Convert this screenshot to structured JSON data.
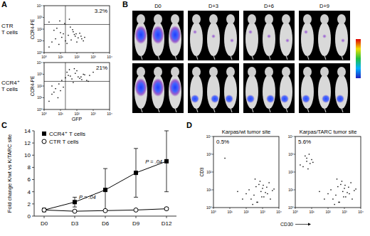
{
  "chart_data": [
    {
      "type": "scatter",
      "panel": "A",
      "title": "CTR T cells",
      "y_label": "CCR4-PE",
      "color": "#000000",
      "log": true,
      "xlim": [
        1,
        10000
      ],
      "ylim": [
        1,
        10000
      ],
      "xticks": [
        {
          "value": 1,
          "label": "10⁰"
        },
        {
          "value": 10,
          "label": "10¹"
        },
        {
          "value": 100,
          "label": "10²"
        },
        {
          "value": 1000,
          "label": "10³"
        },
        {
          "value": 10000,
          "label": "10⁴"
        }
      ],
      "yticks": [
        {
          "value": 1,
          "label": "10⁰"
        },
        {
          "value": 10,
          "label": "10¹"
        },
        {
          "value": 100,
          "label": "10²"
        },
        {
          "value": 1000,
          "label": "10³"
        },
        {
          "value": 10000,
          "label": "10⁴"
        }
      ],
      "quadrant": [
        20,
        250
      ],
      "annotation": "3.2%",
      "x": [
        2,
        3,
        5,
        8,
        12,
        15,
        20,
        30,
        45,
        60,
        80,
        100,
        150,
        200,
        300,
        4,
        6,
        10,
        25,
        40,
        70,
        120,
        250,
        2,
        9,
        18,
        35,
        55,
        90,
        180
      ],
      "y": [
        3,
        8,
        15,
        5,
        20,
        40,
        10,
        30,
        12,
        60,
        25,
        8,
        45,
        15,
        20,
        80,
        120,
        50,
        6,
        150,
        35,
        18,
        10,
        400,
        500,
        300,
        700,
        90,
        40,
        25
      ]
    },
    {
      "type": "scatter",
      "title": "CCR4⁺ T cells",
      "y_label": "CCR4-PE",
      "x_label": "GFP",
      "color": "#000000",
      "log": true,
      "xlim": [
        1,
        10000
      ],
      "ylim": [
        1,
        10000
      ],
      "xticks": [
        {
          "value": 1,
          "label": "10⁰"
        },
        {
          "value": 10,
          "label": "10¹"
        },
        {
          "value": 100,
          "label": "10²"
        },
        {
          "value": 1000,
          "label": "10³"
        },
        {
          "value": 10000,
          "label": "10⁴"
        }
      ],
      "yticks": [
        {
          "value": 1,
          "label": "10⁰"
        },
        {
          "value": 10,
          "label": "10¹"
        },
        {
          "value": 100,
          "label": "10²"
        },
        {
          "value": 1000,
          "label": "10³"
        },
        {
          "value": 10000,
          "label": "10⁴"
        }
      ],
      "quadrant": [
        20,
        250
      ],
      "annotation": "21%",
      "x": [
        2,
        3,
        5,
        8,
        12,
        20,
        30,
        50,
        80,
        120,
        200,
        300,
        500,
        4,
        7,
        15,
        25,
        40,
        60,
        100,
        150,
        250,
        400,
        10,
        35,
        70,
        180,
        600,
        1000,
        3
      ],
      "y": [
        5,
        20,
        60,
        150,
        300,
        500,
        800,
        400,
        1200,
        600,
        350,
        900,
        250,
        30,
        10,
        80,
        1500,
        700,
        200,
        2000,
        450,
        1000,
        300,
        40,
        2500,
        3000,
        600,
        800,
        1500,
        100
      ]
    },
    {
      "type": "line",
      "panel": "C",
      "y_label": "Fold change K/wt vs K/TARC site",
      "categories": [
        "D0",
        "D3",
        "D6",
        "D9",
        "D12"
      ],
      "ylim": [
        0,
        14
      ],
      "yticks": [
        0,
        2,
        4,
        6,
        8,
        10,
        12,
        14
      ],
      "legend": "upper left",
      "series": [
        {
          "name": "CCR4⁺ T cells",
          "color": "#000000",
          "marker": "square",
          "line_style": "solid",
          "values": [
            1,
            2.3,
            4.3,
            7.1,
            9
          ],
          "errors": [
            0,
            0.8,
            3.5,
            4,
            5
          ]
        },
        {
          "name": "CTR T cells",
          "color": "#000000",
          "marker": "circle",
          "line_style": "solid",
          "values": [
            1,
            0.8,
            0.9,
            1,
            1.2
          ],
          "errors": [
            0,
            0.1,
            0.1,
            0.1,
            0.2
          ]
        }
      ],
      "annotations": [
        {
          "text": "P = .04",
          "at": "D3"
        },
        {
          "text": "P = .04",
          "at": "D12"
        }
      ]
    },
    {
      "type": "scatter",
      "panel": "D",
      "title": "Karpas/wt tumor site",
      "y_label": "CD3",
      "color": "#000000",
      "log": true,
      "xlim": [
        1,
        10000
      ],
      "ylim": [
        1,
        10000
      ],
      "xticks": [
        {
          "value": 1,
          "label": "10⁰"
        },
        {
          "value": 10,
          "label": "10¹"
        },
        {
          "value": 100,
          "label": "10²"
        },
        {
          "value": 1000,
          "label": "10³"
        },
        {
          "value": 10000,
          "label": "10⁴"
        }
      ],
      "yticks": [
        {
          "value": 1,
          "label": "10⁰"
        },
        {
          "value": 10,
          "label": "10¹"
        },
        {
          "value": 100,
          "label": "10²"
        },
        {
          "value": 1000,
          "label": "10³"
        },
        {
          "value": 10000,
          "label": "10⁴"
        }
      ],
      "annotation": "0.5%",
      "x": [
        200,
        300,
        500,
        800,
        1200,
        2000,
        3000,
        150,
        400,
        600,
        1000,
        1500,
        2500,
        4000,
        250,
        700,
        900,
        1800,
        100,
        350,
        5000,
        60,
        450,
        1100,
        30,
        5
      ],
      "y": [
        3,
        5,
        2,
        8,
        4,
        6,
        3,
        10,
        15,
        20,
        12,
        7,
        25,
        9,
        1.5,
        30,
        4,
        14,
        6,
        40,
        11,
        3,
        2,
        18,
        8,
        600
      ]
    },
    {
      "type": "scatter",
      "title": "Karpas/TARC tumor site",
      "x_label": "CD30",
      "color": "#000000",
      "log": true,
      "xlim": [
        1,
        10000
      ],
      "ylim": [
        1,
        10000
      ],
      "xticks": [
        {
          "value": 1,
          "label": "10⁰"
        },
        {
          "value": 10,
          "label": "10¹"
        },
        {
          "value": 100,
          "label": "10²"
        },
        {
          "value": 1000,
          "label": "10³"
        },
        {
          "value": 10000,
          "label": "10⁴"
        }
      ],
      "yticks": [
        {
          "value": 1,
          "label": "10⁰"
        },
        {
          "value": 10,
          "label": "10¹"
        },
        {
          "value": 100,
          "label": "10²"
        },
        {
          "value": 1000,
          "label": "10³"
        },
        {
          "value": 10000,
          "label": "10⁴"
        }
      ],
      "annotation": "5.6%",
      "x": [
        200,
        300,
        500,
        800,
        1200,
        2000,
        3000,
        150,
        400,
        600,
        1000,
        1500,
        2500,
        4000,
        250,
        700,
        900,
        1800,
        100,
        350,
        5000,
        60,
        450,
        1100,
        30,
        3,
        5,
        8,
        4,
        6,
        10,
        2,
        7,
        12,
        5
      ],
      "y": [
        3,
        5,
        2,
        8,
        4,
        6,
        3,
        10,
        15,
        20,
        12,
        7,
        25,
        9,
        1.5,
        30,
        4,
        14,
        6,
        40,
        11,
        3,
        2,
        18,
        8,
        200,
        400,
        300,
        800,
        150,
        500,
        250,
        1000,
        350,
        600
      ]
    }
  ],
  "image_panel": {
    "panel": "B",
    "columns": [
      "D0",
      "D+3",
      "D+6",
      "D+9"
    ],
    "rows": 2,
    "mice_per_group": 3
  }
}
